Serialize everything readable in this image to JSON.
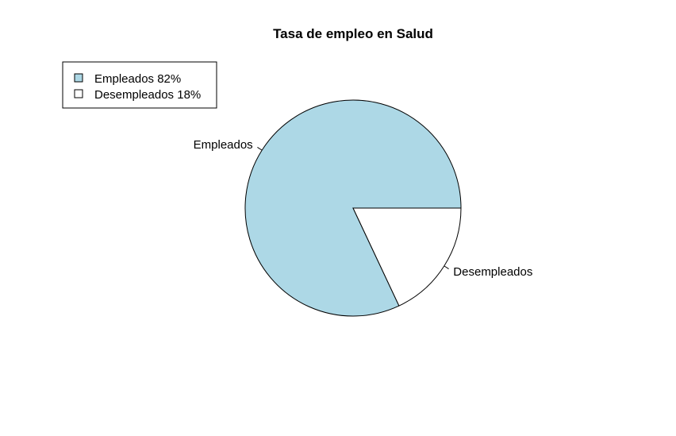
{
  "chart_data": {
    "type": "pie",
    "title": "Tasa de empleo en Salud",
    "slices": [
      {
        "label": "Empleados",
        "value": 82,
        "color": "#ADD8E6"
      },
      {
        "label": "Desempleados",
        "value": 18,
        "color": "#FFFFFF"
      }
    ],
    "legend": {
      "position": "top-left",
      "entries": [
        "Empleados  82%",
        "Desempleados  18%"
      ]
    }
  }
}
